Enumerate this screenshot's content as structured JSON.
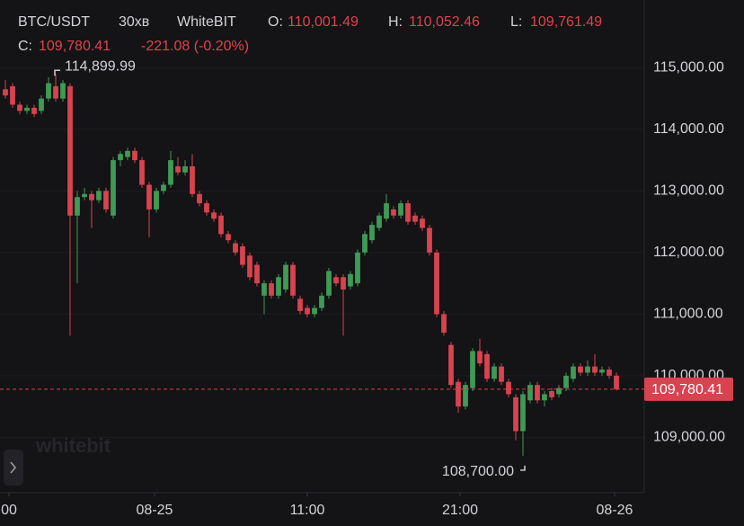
{
  "chart_data": {
    "type": "candlestick",
    "symbol": "BTC/USDT",
    "interval": "30хв",
    "exchange": "WhiteBIT",
    "ohlc_header": {
      "o_label": "O:",
      "o": "110,001.49",
      "h_label": "H:",
      "h": "110,052.46",
      "l_label": "L:",
      "l": "109,761.49",
      "c_label": "C:",
      "c": "109,780.41",
      "change": "-221.08 (-0.20%)"
    },
    "watermark": "whitebit",
    "up_color": "#3f9a55",
    "down_color": "#d8434f",
    "header_color": "#e0434e",
    "open": [
      114650,
      114700,
      114400,
      114300,
      114350,
      114300,
      114500,
      114700,
      114500,
      114700,
      112600,
      112900,
      112950,
      112850,
      113000,
      112600,
      113500,
      113550,
      113650,
      113500,
      113100,
      112700,
      113000,
      113100,
      113400,
      113300,
      113400,
      112950,
      112800,
      112650,
      112600,
      112300,
      112150,
      112100,
      111950,
      111800,
      111300,
      111500,
      111300,
      111400,
      111800,
      111250,
      111100,
      111000,
      111100,
      111300,
      111600,
      111600,
      111450,
      111500,
      112000,
      112200,
      112400,
      112550,
      112700,
      112600,
      112800,
      112600,
      112550,
      112400,
      112000,
      111000,
      110500,
      109900,
      109500,
      109800,
      110400,
      110350,
      109950,
      110150,
      109900,
      109650,
      109100,
      109600,
      109850,
      109600,
      109750,
      109700,
      109800,
      109950,
      110150,
      110050,
      110150,
      110050,
      110100,
      110001.49
    ],
    "high": [
      114800,
      114750,
      114450,
      114400,
      114400,
      114550,
      114850,
      114899.99,
      114800,
      114750,
      113000,
      113050,
      113000,
      113050,
      113050,
      113550,
      113650,
      113700,
      113700,
      113550,
      113150,
      113050,
      113150,
      113650,
      113550,
      113500,
      113600,
      113000,
      112850,
      112700,
      112650,
      112350,
      112200,
      112150,
      112000,
      111850,
      111550,
      111550,
      111650,
      111850,
      111850,
      111300,
      111150,
      111150,
      111350,
      111750,
      111650,
      111650,
      111700,
      112050,
      112350,
      112500,
      112650,
      112950,
      112750,
      112850,
      112850,
      112650,
      112600,
      112450,
      112050,
      111050,
      110550,
      109950,
      109900,
      110450,
      110600,
      110400,
      110200,
      110200,
      109950,
      109700,
      109750,
      109900,
      109900,
      109750,
      109800,
      109850,
      110050,
      110200,
      110200,
      110250,
      110350,
      110150,
      110150,
      110052.46
    ],
    "low": [
      114500,
      114350,
      114250,
      114250,
      114200,
      114250,
      114450,
      114450,
      114450,
      110650,
      111500,
      112850,
      112400,
      112800,
      112650,
      112550,
      113400,
      113500,
      113450,
      113050,
      112250,
      112650,
      112950,
      113050,
      113250,
      113250,
      112900,
      112750,
      112600,
      112500,
      112250,
      112150,
      111950,
      111750,
      111550,
      111450,
      111000,
      111250,
      111250,
      111350,
      111250,
      111000,
      110950,
      110950,
      111050,
      111250,
      111450,
      110650,
      111400,
      111450,
      111950,
      112150,
      112350,
      112500,
      112550,
      112550,
      112450,
      112450,
      112350,
      111950,
      110950,
      110650,
      109800,
      109400,
      109450,
      109750,
      110150,
      109900,
      109900,
      109850,
      109650,
      108950,
      108700,
      109550,
      109550,
      109500,
      109600,
      109650,
      109750,
      109900,
      110000,
      110000,
      110000,
      110000,
      109950,
      109761.49
    ],
    "close": [
      114550,
      114400,
      114300,
      114350,
      114250,
      114500,
      114750,
      114500,
      114750,
      112600,
      112900,
      112950,
      112850,
      113000,
      112700,
      113500,
      113600,
      113650,
      113500,
      113100,
      112700,
      113000,
      113100,
      113500,
      113300,
      113400,
      112950,
      112800,
      112650,
      112550,
      112300,
      112200,
      112000,
      111800,
      111600,
      111500,
      111500,
      111300,
      111600,
      111800,
      111300,
      111050,
      111000,
      111100,
      111300,
      111700,
      111500,
      111400,
      111650,
      112000,
      112300,
      112450,
      112600,
      112800,
      112600,
      112800,
      112500,
      112500,
      112400,
      112000,
      111000,
      110700,
      109850,
      109500,
      109850,
      110400,
      110200,
      109950,
      110150,
      109900,
      109700,
      109100,
      109700,
      109850,
      109600,
      109700,
      109650,
      109800,
      110000,
      110150,
      110050,
      110150,
      110050,
      110100,
      110000,
      109780.41
    ],
    "xlim": [
      -0.75,
      88.875
    ],
    "xticks": [
      {
        "value": 0.5,
        "label": "00"
      },
      {
        "value": 20.75,
        "label": "08-25"
      },
      {
        "value": 42,
        "label": "11:00"
      },
      {
        "value": 63.25,
        "label": "21:00"
      },
      {
        "value": 84.75,
        "label": "08-26"
      }
    ],
    "ylim": [
      108100,
      116100
    ],
    "yticks": [
      {
        "value": 109000,
        "label": "109,000.00"
      },
      {
        "value": 110000,
        "label": "110,000.00"
      },
      {
        "value": 111000,
        "label": "111,000.00"
      },
      {
        "value": 112000,
        "label": "112,000.00"
      },
      {
        "value": 113000,
        "label": "113,000.00"
      },
      {
        "value": 114000,
        "label": "114,000.00"
      },
      {
        "value": 115000,
        "label": "115,000.00"
      }
    ],
    "last_price": {
      "value": 109780.41,
      "label": "109,780.41"
    },
    "high_marker": {
      "index": 7,
      "value": 114899.99,
      "label": "114,899.99"
    },
    "low_marker": {
      "index": 72,
      "value": 108700,
      "label": "108,700.00"
    }
  }
}
